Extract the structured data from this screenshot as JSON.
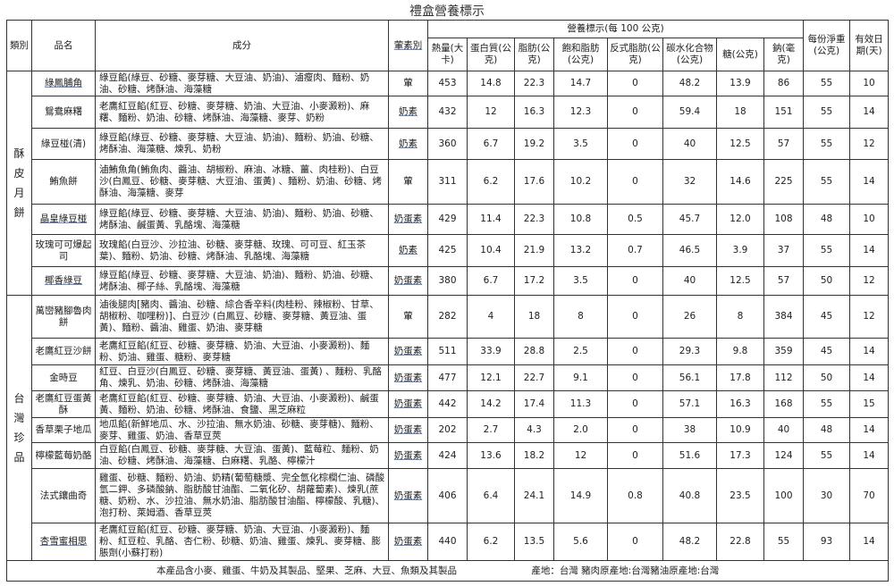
{
  "title": "禮盒營養標示",
  "headers": {
    "category": "類別",
    "name": "品名",
    "ingredients": "成分",
    "diet": "葷素別",
    "nutrition_group": "營養標示(每 100 公克)",
    "nutrients": [
      "熱量(大卡)",
      "蛋白質(公克)",
      "脂肪(公克)",
      "飽和脂肪(公克)",
      "反式脂肪(公克)",
      "碳水化合物(公克)",
      "糖(公克)",
      "鈉(毫克)"
    ],
    "net_weight": "每份淨重(公克)",
    "shelf_life": "有效日期(天)"
  },
  "categories": [
    {
      "label": "酥皮月餅",
      "rows": [
        {
          "name": "綠鳳脯角",
          "ingredients": "綠豆餡(綠豆、砂糖、麥芽糖、大豆油、奶油)、滷瘦肉、麵粉、奶油、砂糖、烤酥油、海藻糖",
          "diet": "葷",
          "values": [
            "453",
            "14.8",
            "22.3",
            "14.7",
            "0",
            "48.2",
            "13.9",
            "86"
          ],
          "weight": "55",
          "days": "10"
        },
        {
          "name": "鴛鴦麻糬",
          "ingredients": "老鷹紅豆餡(紅豆、砂糖、麥芽糖、奶油、大豆油、小麥澱粉)、麻糬、麵粉、奶油、砂糖、烤酥油、海藻糖、麥芽、奶粉",
          "diet": "奶素",
          "values": [
            "432",
            "12",
            "16.3",
            "12.3",
            "0",
            "59.4",
            "18",
            "151"
          ],
          "weight": "55",
          "days": "14"
        },
        {
          "name": "綠豆椪(清)",
          "ingredients": "綠豆餡(綠豆、砂糖、麥芽糖、大豆油、奶油)、麵粉、奶油、砂糖、烤酥油、海藻糖、煉乳、奶粉",
          "diet": "奶素",
          "values": [
            "360",
            "6.7",
            "19.2",
            "3.5",
            "0",
            "40",
            "12.5",
            "57"
          ],
          "weight": "55",
          "days": "12"
        },
        {
          "name": "鮪魚餅",
          "ingredients": "滷鮪魚角(鮪魚肉、醬油、胡椒粉、麻油、冰糖、薑、肉桂粉)、白豆沙(白鳳豆、砂糖、麥芽糖、大豆油、蛋黃) 、麵粉、奶油、砂糖、烤酥油、海藻糖、麥芽",
          "diet": "葷",
          "values": [
            "311",
            "6.2",
            "17.6",
            "10.2",
            "0",
            "32",
            "14.6",
            "225"
          ],
          "weight": "55",
          "days": "14"
        },
        {
          "name": "晶皇綠豆椪",
          "ingredients": "綠豆餡(綠豆、砂糖、麥芽糖、大豆油、奶油)、麵粉、奶油、砂糖、烤酥油、鹹蛋黃、乳酪塊、海藻糖",
          "diet": "奶蛋素",
          "values": [
            "429",
            "11.4",
            "22.3",
            "10.8",
            "0.5",
            "45.7",
            "12.0",
            "108"
          ],
          "weight": "48",
          "days": "10"
        },
        {
          "name": "玫瑰可可爆起司",
          "ingredients": "玫瑰餡(白豆沙、沙拉油、砂糖、麥芽糖、玫瑰、可可豆、紅玉茶葉)、麵粉、奶油、砂糖、烤酥油、乳酪塊、海藻糖",
          "diet": "奶素",
          "values": [
            "425",
            "10.4",
            "21.9",
            "13.2",
            "0.7",
            "46.5",
            "3.9",
            "37"
          ],
          "weight": "55",
          "days": "14"
        },
        {
          "name": "椰香綠豆",
          "ingredients": "綠豆餡(綠豆、砂糖、麥芽糖、大豆油、奶油)、麵粉、奶油、砂糖、烤酥油、椰子絲、乳酪塊、海藻糖",
          "diet": "奶蛋素",
          "values": [
            "380",
            "6.7",
            "17.2",
            "3.5",
            "0",
            "40",
            "12.5",
            "57"
          ],
          "weight": "50",
          "days": "12"
        }
      ]
    },
    {
      "label": "台灣珍品",
      "rows": [
        {
          "name": "萬巒豬腳魯肉餅",
          "ingredients": "滷後腿肉[豬肉、醬油、砂糖、綜合香辛料(肉桂粉、辣椒粉、甘草、胡椒粉、咖哩粉)]、白豆沙 (白鳳豆、砂糖、麥芽糖、黃豆油、蛋黃)、麵粉、醬油、雞蛋、奶油、麥芽糖",
          "diet": "葷",
          "values": [
            "282",
            "4",
            "18",
            "8",
            "0",
            "26",
            "8",
            "384"
          ],
          "weight": "45",
          "days": "12"
        },
        {
          "name": "老鷹紅豆沙餅",
          "ingredients": "老鷹紅豆餡(紅豆、砂糖、麥芽糖、奶油、大豆油、小麥澱粉)、麵粉、奶油、雞蛋、糖粉、麥芽糖",
          "diet": "奶蛋素",
          "values": [
            "511",
            "33.9",
            "28.8",
            "2.5",
            "0",
            "29.3",
            "9.8",
            "359"
          ],
          "weight": "45",
          "days": "14"
        },
        {
          "name": "金時豆",
          "ingredients": "紅豆、白豆沙(白鳳豆、砂糖、麥芽糖、黃豆油、蛋黃) 、麵粉、乳酪角、煉乳、奶油、砂糖、烤酥油、海藻糖",
          "diet": "奶蛋素",
          "values": [
            "477",
            "12.1",
            "22.7",
            "9.1",
            "0",
            "56.1",
            "17.8",
            "112"
          ],
          "weight": "50",
          "days": "14"
        },
        {
          "name": "老鷹紅豆蛋黃酥",
          "ingredients": "老鷹紅豆餡(紅豆、砂糖、麥芽糖、奶油、大豆油、小麥澱粉)、鹹蛋黃、麵粉、奶油、砂糖、烤酥油、食鹽、黑芝麻粒",
          "diet": "奶蛋素",
          "values": [
            "442",
            "14.2",
            "17.4",
            "11.3",
            "0",
            "57.1",
            "16.3",
            "168"
          ],
          "weight": "55",
          "days": "15"
        },
        {
          "name": "香草栗子地瓜",
          "ingredients": "地瓜餡(新鮮地瓜、水、沙拉油、無水奶油、砂糖、麥芽糖)、麵粉、麥芽、雞蛋、奶油、香草豆莢",
          "diet": "奶蛋素",
          "values": [
            "202",
            "2.7",
            "4.3",
            "2.0",
            "0",
            "38",
            "10.9",
            "40"
          ],
          "weight": "48",
          "days": "14"
        },
        {
          "name": "檸檬藍莓奶酪",
          "ingredients": "白豆餡(白鳳豆、砂糖、麥芽糖、大豆油、蛋黃)、藍莓粒、麵粉、奶油、砂糖、烤酥油、海藻糖、白麻糬、乳酪、檸檬汁",
          "diet": "奶蛋素",
          "values": [
            "424",
            "13.6",
            "18.2",
            "12",
            "0",
            "51.6",
            "17.3",
            "124"
          ],
          "weight": "55",
          "days": "14"
        },
        {
          "name": "法式鑲曲奇",
          "ingredients": "雞蛋、砂糖、麵粉、奶油、奶精(葡萄糖漿、完全氫化棕櫚仁油、磷酸氫二鉀、多磷酸鈉、脂肪酸甘油酯、二氧化矽、胡蘿蔔素)、煉乳(蔗糖、奶粉、水、沙拉油、無水奶油、脂肪酸甘油酯、檸檬酸、乳糖)、泡打粉、萊姆酒、香草豆莢",
          "diet": "奶蛋素",
          "values": [
            "406",
            "6.4",
            "24.1",
            "14.9",
            "0.8",
            "40.8",
            "23.5",
            "100"
          ],
          "weight": "30",
          "days": "70"
        },
        {
          "name": "杏雪蜜相思",
          "ingredients": "老鷹紅豆餡(紅豆、砂糖、麥芽糖、奶油、大豆油、小麥澱粉)、麵粉、紅豆粒、乳酪、杏仁粉、砂糖、奶油、雞蛋、煉乳、麥芽糖、膨脹劑(小蘇打粉)",
          "diet": "奶蛋素",
          "values": [
            "440",
            "6.2",
            "13.5",
            "5.6",
            "0",
            "48.2",
            "22.8",
            "55"
          ],
          "weight": "93",
          "days": "14"
        }
      ]
    }
  ],
  "footer": {
    "allergen": "本產品含小麥、雞蛋、牛奶及其製品、堅果、芝麻、大豆、魚類及其製品",
    "origin": "產地：台灣 豬肉原產地:台灣豬油原產地:台灣"
  },
  "colors": {
    "border": "#333333",
    "spellcheck_underline": "#6b8cc9"
  }
}
